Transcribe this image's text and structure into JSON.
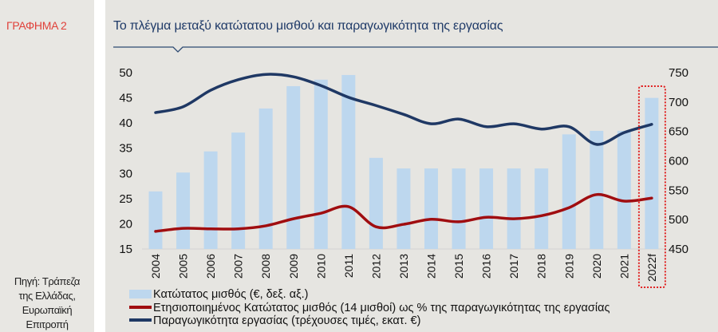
{
  "sidebar": {
    "label": "ΓΡΑΦΗΜΑ 2",
    "source": [
      "Πηγή: Τράπεζα",
      "της Ελλάδας,",
      "Ευρωπαϊκή",
      "Επιτροπή"
    ]
  },
  "colors": {
    "bars": "#bdd7ee",
    "red_line": "#a00d10",
    "blue_line": "#1f3864",
    "label": "#e0413a",
    "title": "#1f3a68",
    "highlight": "#e02020"
  },
  "chart_data": {
    "type": "bar+line",
    "title": "Το πλέγμα μεταξύ κατώτατου μισθού και παραγωγικότητα της εργασίας",
    "categories": [
      "2004",
      "2005",
      "2006",
      "2007",
      "2008",
      "2009",
      "2010",
      "2011",
      "2012",
      "2013",
      "2014",
      "2015",
      "2016",
      "2017",
      "2018",
      "2019",
      "2020",
      "2021",
      "2022f"
    ],
    "left_axis": {
      "ylim": [
        15,
        50
      ],
      "ticks": [
        "15",
        "20",
        "25",
        "30",
        "35",
        "40",
        "45",
        "50"
      ]
    },
    "right_axis": {
      "ylim": [
        450,
        750
      ],
      "ticks": [
        "450",
        "500",
        "550",
        "600",
        "650",
        "700",
        "750"
      ]
    },
    "highlighted_category": "2022f",
    "series": [
      {
        "name": "Κατώτατος μισθός (€, δεξ. αξ.)",
        "type": "bar",
        "axis": "right",
        "values": [
          548,
          580,
          616,
          648,
          689,
          727,
          738,
          746,
          605,
          587,
          587,
          587,
          587,
          587,
          587,
          645,
          651,
          651,
          707
        ]
      },
      {
        "name": "Ετησιοποιημένος Κατώτατος μισθός (14 μισθοί) ως % της παραγωγικότητας της εργασίας",
        "type": "line",
        "axis": "left",
        "values": [
          18.5,
          19.1,
          19.0,
          19.0,
          19.6,
          21.0,
          22.1,
          23.4,
          19.4,
          19.9,
          20.9,
          20.4,
          21.3,
          21.0,
          21.6,
          23.2,
          25.8,
          24.5,
          25.1
        ]
      },
      {
        "name": "Παραγωγικότητα εργασίας (τρέχουσες τιμές, εκατ. €)",
        "type": "line",
        "axis": "right",
        "values": [
          682,
          692,
          720,
          738,
          747,
          743,
          728,
          708,
          694,
          679,
          663,
          671,
          658,
          663,
          654,
          658,
          628,
          648,
          662
        ]
      }
    ],
    "legend_position": "bottom"
  }
}
